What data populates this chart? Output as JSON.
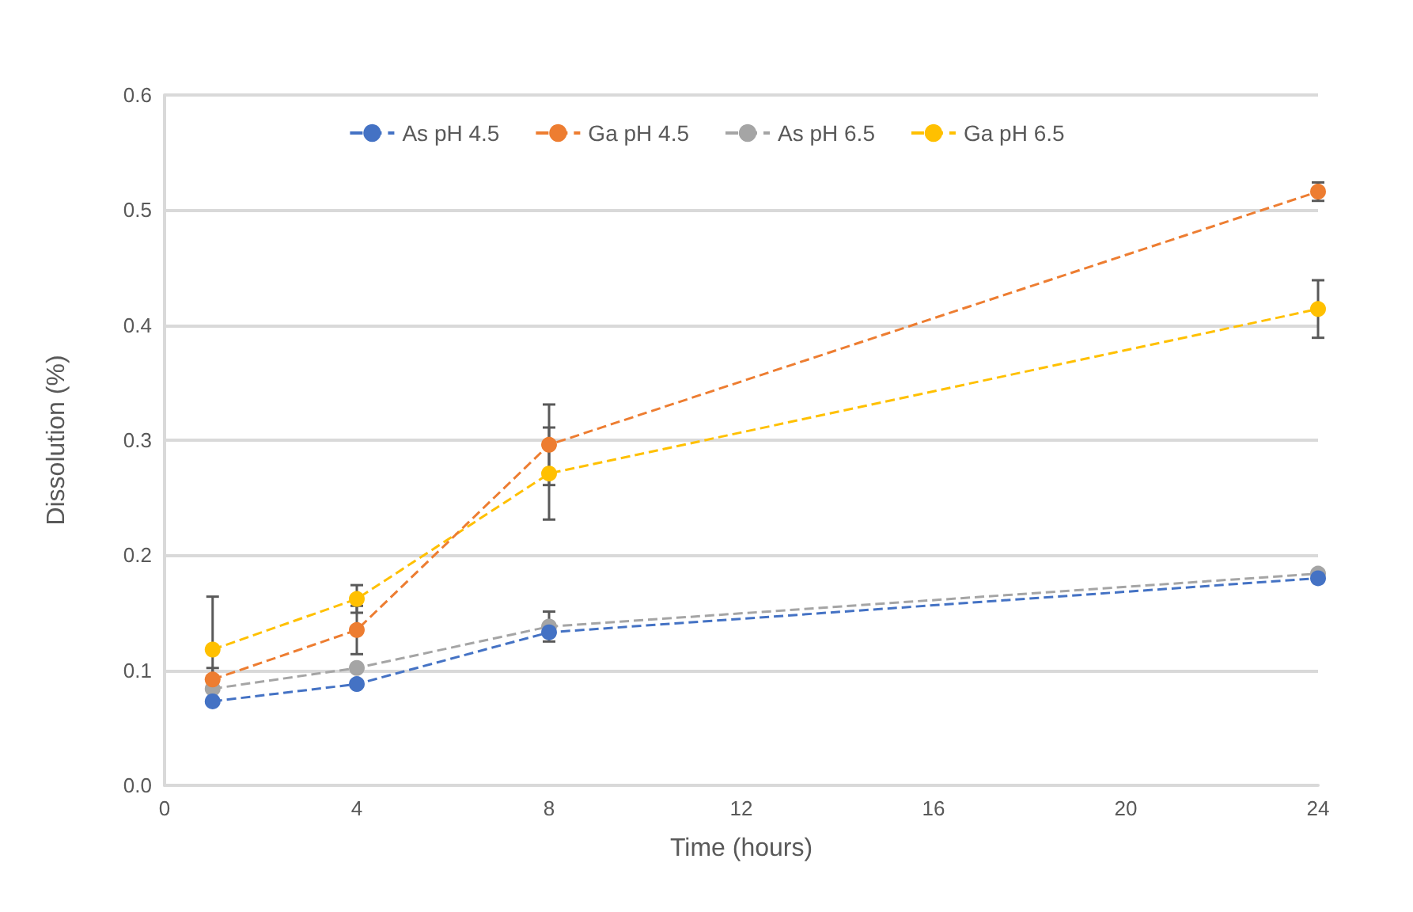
{
  "chart_data": {
    "type": "line",
    "xlabel": "Time (hours)",
    "ylabel": "Dissolution (%)",
    "xlim": [
      0,
      24
    ],
    "xticks": [
      0,
      4,
      8,
      12,
      16,
      20,
      24
    ],
    "ylim": [
      0,
      0.6
    ],
    "yticks": [
      {
        "value": 0,
        "label": "0.0"
      },
      0.1,
      0.2,
      0.3,
      0.4,
      0.5,
      0.6
    ],
    "grid": "y",
    "legend": "top",
    "marker": "circle",
    "line_style": "dashed",
    "series": [
      {
        "name": "As pH 4.5",
        "color": "#4472c4",
        "x": [
          1,
          4,
          8,
          24
        ],
        "values": [
          0.073,
          0.088,
          0.133,
          0.18
        ]
      },
      {
        "name": "Ga pH 4.5",
        "color": "#ed7d31",
        "x": [
          1,
          4,
          8,
          24
        ],
        "values": [
          0.092,
          0.135,
          0.296,
          0.516
        ],
        "errors": [
          0.01,
          0.021,
          0.035,
          0.008
        ]
      },
      {
        "name": "As pH 6.5",
        "color": "#a5a5a5",
        "x": [
          1,
          4,
          8,
          24
        ],
        "values": [
          0.084,
          0.102,
          0.138,
          0.184
        ],
        "errors": [
          null,
          null,
          0.013,
          null
        ]
      },
      {
        "name": "Ga pH 6.5",
        "color": "#ffc000",
        "x": [
          1,
          4,
          8,
          24
        ],
        "values": [
          0.118,
          0.162,
          0.271,
          0.414
        ],
        "errors": [
          0.046,
          0.012,
          0.04,
          0.025
        ]
      }
    ]
  }
}
